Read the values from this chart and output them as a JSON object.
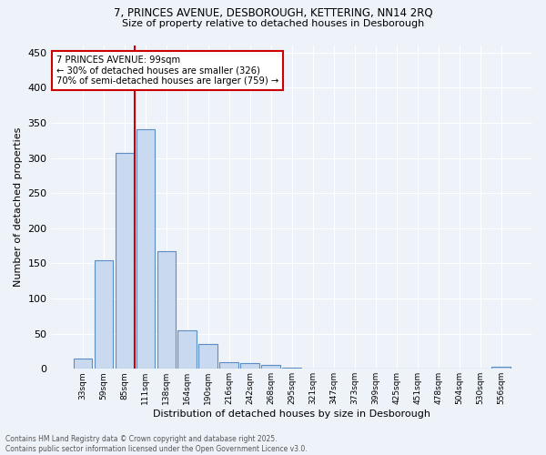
{
  "title_line1": "7, PRINCES AVENUE, DESBOROUGH, KETTERING, NN14 2RQ",
  "title_line2": "Size of property relative to detached houses in Desborough",
  "xlabel": "Distribution of detached houses by size in Desborough",
  "ylabel": "Number of detached properties",
  "bar_categories": [
    "33sqm",
    "59sqm",
    "85sqm",
    "111sqm",
    "138sqm",
    "164sqm",
    "190sqm",
    "216sqm",
    "242sqm",
    "268sqm",
    "295sqm",
    "321sqm",
    "347sqm",
    "373sqm",
    "399sqm",
    "425sqm",
    "451sqm",
    "478sqm",
    "504sqm",
    "530sqm",
    "556sqm"
  ],
  "bar_values": [
    15,
    155,
    307,
    341,
    167,
    55,
    35,
    10,
    8,
    6,
    2,
    0,
    1,
    0,
    0,
    0,
    0,
    0,
    0,
    0,
    3
  ],
  "bar_color": "#c9d9f0",
  "bar_edge_color": "#5b8ec4",
  "vline_x": 2.5,
  "vline_color": "#cc0000",
  "annotation_text": "7 PRINCES AVENUE: 99sqm\n← 30% of detached houses are smaller (326)\n70% of semi-detached houses are larger (759) →",
  "annotation_box_color": "#cc0000",
  "annotation_text_color": "#000000",
  "ylim": [
    0,
    460
  ],
  "yticks": [
    0,
    50,
    100,
    150,
    200,
    250,
    300,
    350,
    400,
    450
  ],
  "background_color": "#eef2f9",
  "grid_color": "#ffffff",
  "footer_line1": "Contains HM Land Registry data © Crown copyright and database right 2025.",
  "footer_line2": "Contains public sector information licensed under the Open Government Licence v3.0."
}
